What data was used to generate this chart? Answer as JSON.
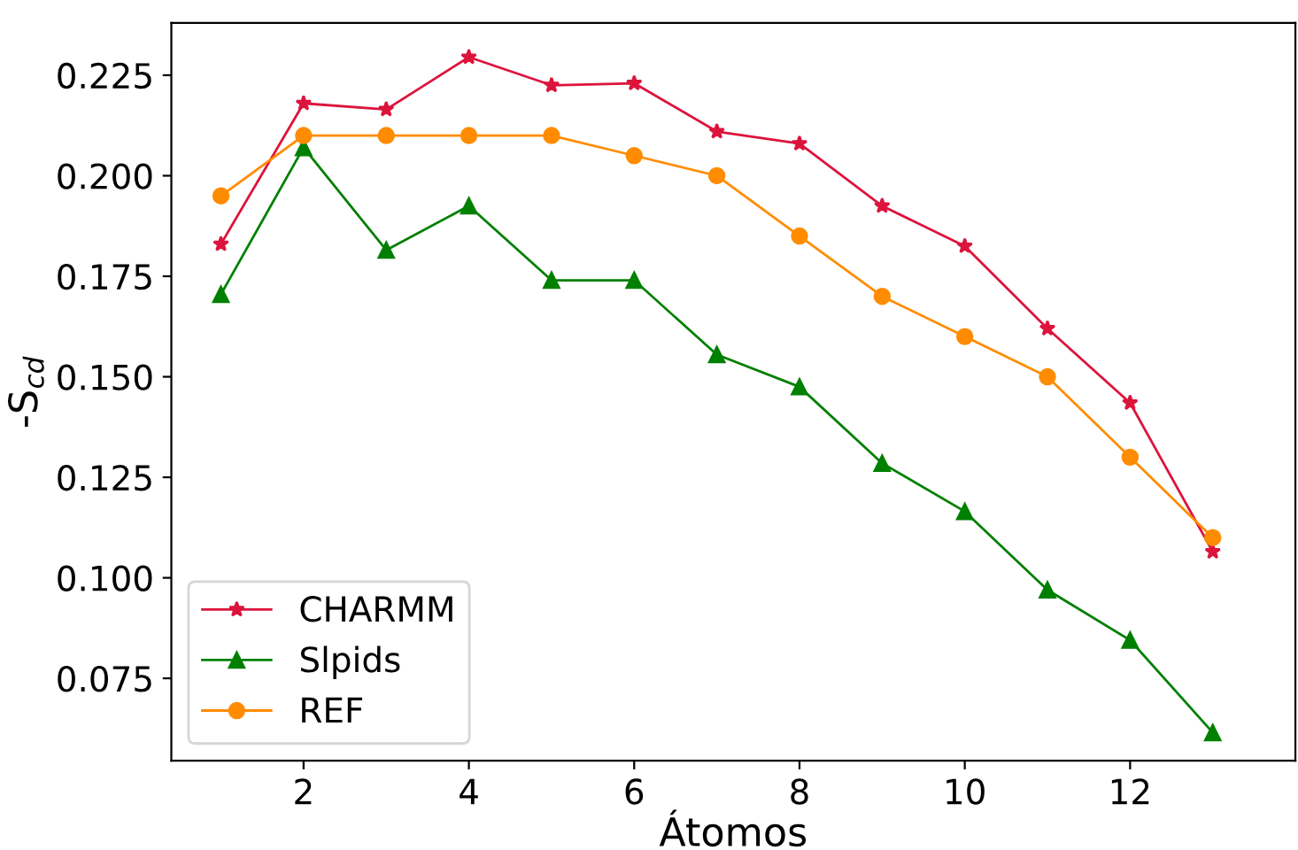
{
  "chart_data": {
    "type": "line",
    "xlabel": "Átomos",
    "ylabel": "-S$_{cd}$",
    "x": [
      1,
      2,
      3,
      4,
      5,
      6,
      7,
      8,
      9,
      10,
      11,
      12,
      13
    ],
    "series": [
      {
        "name": "CHARMM",
        "color": "#dc143c",
        "marker": "star",
        "values": [
          0.183,
          0.218,
          0.2165,
          0.2295,
          0.2225,
          0.223,
          0.211,
          0.208,
          0.1925,
          0.1825,
          0.162,
          0.1435,
          0.1065
        ]
      },
      {
        "name": "Slpids",
        "color": "#008000",
        "marker": "triangle",
        "values": [
          0.1705,
          0.207,
          0.1815,
          0.1925,
          0.174,
          0.174,
          0.1555,
          0.1475,
          0.1285,
          0.1165,
          0.097,
          0.0845,
          0.0615
        ]
      },
      {
        "name": "REF",
        "color": "#ff8c00",
        "marker": "circle",
        "values": [
          0.195,
          0.21,
          0.21,
          0.21,
          0.21,
          0.205,
          0.2,
          0.185,
          0.17,
          0.16,
          0.15,
          0.13,
          0.11
        ]
      }
    ],
    "xlim": [
      0.4,
      14.0
    ],
    "xticks": [
      2,
      4,
      6,
      8,
      10,
      12
    ],
    "ylim": [
      0.0545,
      0.238
    ],
    "yticks": [
      {
        "value": 0.075,
        "label": "0.075"
      },
      {
        "value": 0.1,
        "label": "0.100"
      },
      {
        "value": 0.125,
        "label": "0.125"
      },
      {
        "value": 0.15,
        "label": "0.150"
      },
      {
        "value": 0.175,
        "label": "0.175"
      },
      {
        "value": 0.2,
        "label": "0.200"
      },
      {
        "value": 0.225,
        "label": "0.225"
      }
    ],
    "grid": false,
    "legend": "bottom left",
    "line_style": "solid"
  }
}
